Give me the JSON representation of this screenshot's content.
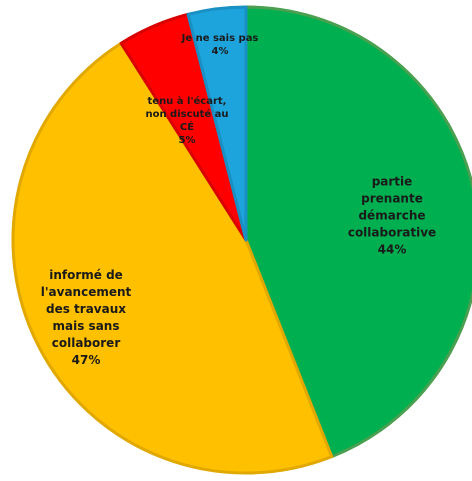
{
  "chart_data": {
    "type": "pie",
    "start_angle_deg": 0,
    "direction": "clockwise",
    "slices": [
      {
        "label": "partie prenante\ndémarche\ncollaborative",
        "value": 44,
        "percent_label": "44%",
        "color": "#00b050",
        "stroke": "#4aa050"
      },
      {
        "label": "informé de\nl'avancement\ndes travaux\nmais sans\ncollaborer",
        "value": 47,
        "percent_label": "47%",
        "color": "#ffc000",
        "stroke": "#e0a800"
      },
      {
        "label": "tenu à l'écart,\nnon discuté au\nCÉ",
        "value": 5,
        "percent_label": "5%",
        "color": "#ff0000",
        "stroke": "#d80000"
      },
      {
        "label": "Je ne sais pas",
        "value": 4,
        "percent_label": "4%",
        "color": "#1ea4dc",
        "stroke": "#1890c4"
      }
    ]
  }
}
